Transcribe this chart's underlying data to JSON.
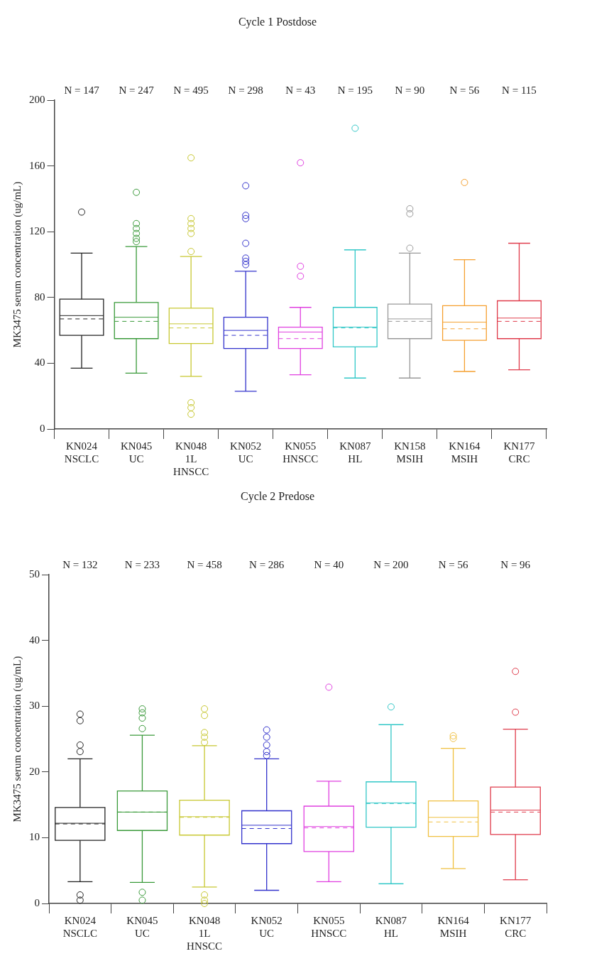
{
  "chart_data": [
    {
      "type": "box",
      "title": "Cycle 1 Postdose",
      "ylabel": "MK3475 serum concentration (ug/mL)",
      "categories": [
        "KN024\nNSCLC",
        "KN045\nUC",
        "KN048\n1L\nHNSCC",
        "KN052\nUC",
        "KN055\nHNSCC",
        "KN087\nHL",
        "KN158\nMSIH",
        "KN164\nMSIH",
        "KN177\nCRC"
      ],
      "colors": [
        "#222222",
        "#3a9a3a",
        "#c8c832",
        "#3333cc",
        "#e040e0",
        "#33c8c8",
        "#999999",
        "#f5a030",
        "#e03c4c"
      ],
      "boxes": [
        {
          "low": 37,
          "q1": 57,
          "median": 69,
          "q3": 79,
          "high": 107,
          "mean": 67,
          "outliers": [
            132
          ]
        },
        {
          "low": 34,
          "q1": 55,
          "median": 68,
          "q3": 77,
          "high": 111,
          "mean": 65.5,
          "outliers": [
            144,
            125,
            122,
            119,
            116,
            114
          ]
        },
        {
          "low": 32,
          "q1": 52,
          "median": 64,
          "q3": 73.5,
          "high": 105,
          "mean": 61.5,
          "outliers": [
            165,
            128,
            125,
            122,
            119,
            108,
            16,
            13,
            9
          ]
        },
        {
          "low": 23,
          "q1": 49,
          "median": 60,
          "q3": 68,
          "high": 96,
          "mean": 57,
          "outliers": [
            148,
            130,
            128,
            113,
            104,
            102,
            100
          ]
        },
        {
          "low": 33,
          "q1": 49,
          "median": 59,
          "q3": 62,
          "high": 74,
          "mean": 55,
          "outliers": [
            162,
            99,
            93
          ]
        },
        {
          "low": 31,
          "q1": 50,
          "median": 62,
          "q3": 74,
          "high": 109,
          "mean": 61.5,
          "outliers": [
            183
          ]
        },
        {
          "low": 31,
          "q1": 55,
          "median": 67,
          "q3": 76,
          "high": 107,
          "mean": 65.5,
          "outliers": [
            134,
            131,
            110
          ]
        },
        {
          "low": 35,
          "q1": 54,
          "median": 65,
          "q3": 75,
          "high": 103,
          "mean": 61,
          "outliers": [
            150
          ]
        },
        {
          "low": 36,
          "q1": 55,
          "median": 67.5,
          "q3": 78,
          "high": 113,
          "mean": 65.5
        }
      ],
      "ylim": [
        0,
        200
      ],
      "yticks": [
        0,
        40,
        80,
        120,
        160,
        200
      ],
      "annotations": [
        "N = 147",
        "N = 247",
        "N = 495",
        "N = 298",
        "N = 43",
        "N = 195",
        "N = 90",
        "N = 56",
        "N = 115"
      ]
    },
    {
      "type": "box",
      "title": "Cycle 2 Predose",
      "ylabel": "MK3475 serum concentration (ug/mL)",
      "categories": [
        "KN024\nNSCLC",
        "KN045\nUC",
        "KN048\n1L\nHNSCC",
        "KN052\nUC",
        "KN055\nHNSCC",
        "KN087\nHL",
        "KN164\nMSIH",
        "KN177\nCRC"
      ],
      "colors": [
        "#222222",
        "#3a9a3a",
        "#c8c832",
        "#3333cc",
        "#e040e0",
        "#33c8c8",
        "#f0c040",
        "#e03c4c"
      ],
      "boxes": [
        {
          "low": 3.3,
          "q1": 9.6,
          "median": 12.2,
          "q3": 14.6,
          "high": 22,
          "mean": 12.1,
          "outliers": [
            28.8,
            27.8,
            24.1,
            23.1,
            1.3,
            0.5
          ]
        },
        {
          "low": 3.2,
          "q1": 11.1,
          "median": 13.9,
          "q3": 17.1,
          "high": 25.6,
          "mean": 13.9,
          "outliers": [
            29.6,
            29,
            28.2,
            26.6,
            1.7,
            0.5
          ]
        },
        {
          "low": 2.5,
          "q1": 10.4,
          "median": 13.2,
          "q3": 15.7,
          "high": 24,
          "mean": 13.1,
          "outliers": [
            29.6,
            28.6,
            26,
            25.3,
            24.5,
            1.3,
            0.5,
            0
          ]
        },
        {
          "low": 2,
          "q1": 9.1,
          "median": 11.9,
          "q3": 14.1,
          "high": 22,
          "mean": 11.4,
          "outliers": [
            26.4,
            25.3,
            24.1,
            23.1,
            22.5
          ]
        },
        {
          "low": 3.3,
          "q1": 7.9,
          "median": 11.7,
          "q3": 14.8,
          "high": 18.6,
          "mean": 11.5,
          "outliers": [
            32.9
          ]
        },
        {
          "low": 3,
          "q1": 11.6,
          "median": 15.3,
          "q3": 18.5,
          "high": 27.2,
          "mean": 15.2,
          "outliers": [
            29.9
          ]
        },
        {
          "low": 5.3,
          "q1": 10.2,
          "median": 13.1,
          "q3": 15.6,
          "high": 23.6,
          "mean": 12.4,
          "outliers": [
            25.5,
            25.1
          ]
        },
        {
          "low": 3.6,
          "q1": 10.5,
          "median": 14.2,
          "q3": 17.7,
          "high": 26.5,
          "mean": 13.9,
          "outliers": [
            35.3,
            29.1
          ]
        }
      ],
      "ylim": [
        0,
        50
      ],
      "yticks": [
        0,
        10,
        20,
        30,
        40,
        50
      ],
      "annotations": [
        "N = 132",
        "N = 233",
        "N = 458",
        "N = 286",
        "N = 40",
        "N = 200",
        "N = 56",
        "N = 96"
      ]
    }
  ]
}
